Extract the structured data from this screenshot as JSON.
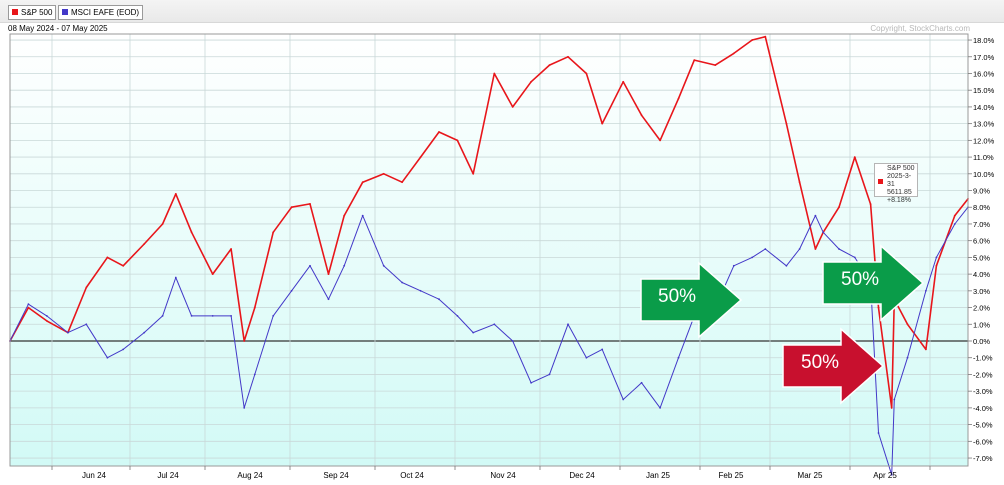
{
  "header": {
    "date_range": "08 May 2024 - 07 May 2025",
    "copyright": "Copyright, StockCharts.com"
  },
  "tooltip": {
    "lines": [
      "S&P 500",
      "2025-3-31",
      "5611.85",
      "+8.18%"
    ]
  },
  "arrows": [
    {
      "label": "50%",
      "color": "#0a9c49"
    },
    {
      "label": "50%",
      "color": "#0a9c49"
    },
    {
      "label": "50%",
      "color": "#c8102e"
    }
  ],
  "chart_data": {
    "type": "line",
    "x_labels": [
      "Jun 24",
      "Jul 24",
      "Aug 24",
      "Sep 24",
      "Oct 24",
      "Nov 24",
      "Dec 24",
      "Jan 25",
      "Feb 25",
      "Mar 25",
      "Apr 25"
    ],
    "y_ticks": [
      18,
      17,
      16,
      15,
      14,
      13,
      12,
      11,
      10,
      9,
      8,
      7,
      6,
      5,
      4,
      3,
      2,
      1,
      0,
      -1,
      -2,
      -3,
      -4,
      -5,
      -6,
      -7
    ],
    "y_tick_suffix": "%",
    "ylim": [
      -7.8,
      18.4
    ],
    "grid": true,
    "legend": "top-left",
    "series": [
      {
        "name": "S&P 500",
        "color": "#e8161b",
        "x": [
          "2024-05-08",
          "2024-05-15",
          "2024-05-22",
          "2024-05-30",
          "2024-06-06",
          "2024-06-14",
          "2024-06-20",
          "2024-06-28",
          "2024-07-05",
          "2024-07-10",
          "2024-07-16",
          "2024-07-24",
          "2024-07-31",
          "2024-08-05",
          "2024-08-09",
          "2024-08-16",
          "2024-08-23",
          "2024-08-30",
          "2024-09-06",
          "2024-09-12",
          "2024-09-19",
          "2024-09-27",
          "2024-10-04",
          "2024-10-11",
          "2024-10-18",
          "2024-10-25",
          "2024-10-31",
          "2024-11-08",
          "2024-11-15",
          "2024-11-22",
          "2024-11-29",
          "2024-12-06",
          "2024-12-13",
          "2024-12-19",
          "2024-12-27",
          "2025-01-03",
          "2025-01-10",
          "2025-01-17",
          "2025-01-23",
          "2025-01-31",
          "2025-02-07",
          "2025-02-14",
          "2025-02-19",
          "2025-02-27",
          "2025-03-04",
          "2025-03-10",
          "2025-03-13",
          "2025-03-19",
          "2025-03-25",
          "2025-03-31",
          "2025-04-03",
          "2025-04-08",
          "2025-04-09",
          "2025-04-14",
          "2025-04-21",
          "2025-04-25",
          "2025-05-02",
          "2025-05-07"
        ],
        "y": [
          0.0,
          2.0,
          1.2,
          0.5,
          3.2,
          5.0,
          4.5,
          5.8,
          7.0,
          8.8,
          6.5,
          4.0,
          5.5,
          0.0,
          2.0,
          6.5,
          8.0,
          8.2,
          4.0,
          7.5,
          9.5,
          10.0,
          9.5,
          11.0,
          12.5,
          12.0,
          10.0,
          16.0,
          14.0,
          15.5,
          16.5,
          17.0,
          16.0,
          13.0,
          15.5,
          13.5,
          12.0,
          14.5,
          16.8,
          16.5,
          17.2,
          18.0,
          18.2,
          13.0,
          9.5,
          5.5,
          6.5,
          8.0,
          11.0,
          8.18,
          2.0,
          -4.0,
          2.5,
          1.0,
          -0.5,
          4.5,
          7.5,
          8.5
        ]
      },
      {
        "name": "MSCI EAFE (EOD)",
        "color": "#4338c8",
        "x": [
          "2024-05-08",
          "2024-05-15",
          "2024-05-22",
          "2024-05-30",
          "2024-06-06",
          "2024-06-14",
          "2024-06-20",
          "2024-06-28",
          "2024-07-05",
          "2024-07-10",
          "2024-07-16",
          "2024-07-24",
          "2024-07-31",
          "2024-08-05",
          "2024-08-09",
          "2024-08-16",
          "2024-08-23",
          "2024-08-30",
          "2024-09-06",
          "2024-09-12",
          "2024-09-19",
          "2024-09-27",
          "2024-10-04",
          "2024-10-11",
          "2024-10-18",
          "2024-10-25",
          "2024-10-31",
          "2024-11-08",
          "2024-11-15",
          "2024-11-22",
          "2024-11-29",
          "2024-12-06",
          "2024-12-13",
          "2024-12-19",
          "2024-12-27",
          "2025-01-03",
          "2025-01-10",
          "2025-01-17",
          "2025-01-23",
          "2025-01-31",
          "2025-02-07",
          "2025-02-14",
          "2025-02-19",
          "2025-02-27",
          "2025-03-04",
          "2025-03-10",
          "2025-03-13",
          "2025-03-19",
          "2025-03-25",
          "2025-03-31",
          "2025-04-03",
          "2025-04-08",
          "2025-04-09",
          "2025-04-14",
          "2025-04-21",
          "2025-04-25",
          "2025-05-02",
          "2025-05-07"
        ],
        "y": [
          0.0,
          2.2,
          1.5,
          0.5,
          1.0,
          -1.0,
          -0.5,
          0.5,
          1.5,
          3.8,
          1.5,
          1.5,
          1.5,
          -4.0,
          -2.0,
          1.5,
          3.0,
          4.5,
          2.5,
          4.5,
          7.5,
          4.5,
          3.5,
          3.0,
          2.5,
          1.5,
          0.5,
          1.0,
          0.0,
          -2.5,
          -2.0,
          1.0,
          -1.0,
          -0.5,
          -3.5,
          -2.5,
          -4.0,
          -1.0,
          1.5,
          2.0,
          4.5,
          5.0,
          5.5,
          4.5,
          5.5,
          7.5,
          6.5,
          5.5,
          5.0,
          3.5,
          -5.5,
          -8.0,
          -3.5,
          -1.0,
          3.0,
          5.0,
          7.0,
          8.0
        ]
      }
    ]
  }
}
